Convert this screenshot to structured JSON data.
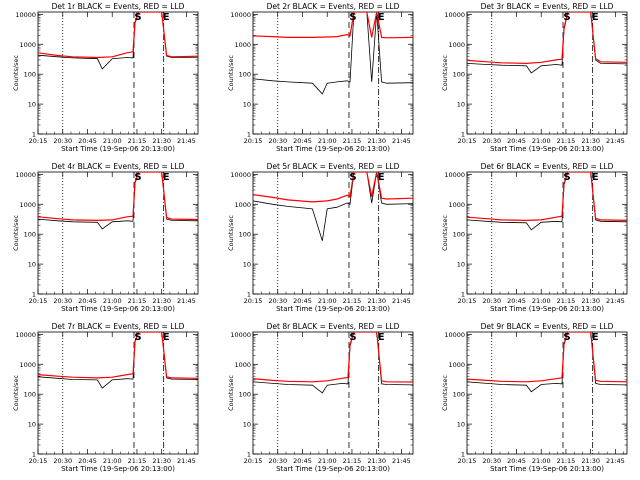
{
  "page": {
    "background": "#ffffff"
  },
  "common": {
    "ylabel": "Counts/sec",
    "xlabel": "Start Time (19-Sep-06 20:13:00)",
    "xticks": [
      "20:15",
      "20:30",
      "20:45",
      "21:00",
      "21:15",
      "21:30",
      "21:45"
    ],
    "yticks": [
      "1",
      "10",
      "100",
      "1000",
      "10000"
    ],
    "colors": {
      "events": "#000000",
      "lld": "#ff0000"
    },
    "scale": "log"
  },
  "chart_data": [
    {
      "type": "line",
      "title": "Det 1r BLACK = Events, RED = LLD",
      "xlim": [
        20.25,
        21.867
      ],
      "ylim": [
        1,
        12000
      ],
      "lines": {
        "dotted": 20.5,
        "dashed": 21.22,
        "dashdot": 21.52
      },
      "markers": [
        {
          "text": "S",
          "x": 21.26
        },
        {
          "text": "E",
          "x": 21.545
        }
      ],
      "series": [
        {
          "name": "Events",
          "color": "#000000",
          "x": [
            20.25,
            20.45,
            20.6,
            20.85,
            20.9,
            21.0,
            21.15,
            21.21,
            21.23,
            21.27,
            21.3,
            21.35,
            21.4,
            21.45,
            21.5,
            21.55,
            21.6,
            21.867
          ],
          "y": [
            430,
            380,
            350,
            330,
            150,
            330,
            360,
            350,
            5000,
            12000,
            12000,
            12000,
            12000,
            12000,
            12000,
            400,
            360,
            370
          ]
        },
        {
          "name": "LLD",
          "color": "#ff0000",
          "x": [
            20.25,
            20.45,
            20.6,
            20.85,
            21.0,
            21.15,
            21.21,
            21.23,
            21.27,
            21.3,
            21.35,
            21.4,
            21.45,
            21.5,
            21.55,
            21.6,
            21.867
          ],
          "y": [
            520,
            420,
            380,
            360,
            380,
            520,
            560,
            5500,
            12000,
            12000,
            12000,
            12000,
            12000,
            12000,
            420,
            380,
            400
          ]
        }
      ]
    },
    {
      "type": "line",
      "title": "Det 2r BLACK = Events, RED = LLD",
      "xlim": [
        20.25,
        21.867
      ],
      "ylim": [
        1,
        12000
      ],
      "lines": {
        "dotted": 20.5,
        "dashed": 21.22,
        "dashdot": 21.52
      },
      "markers": [
        {
          "text": "S",
          "x": 21.26
        },
        {
          "text": "E",
          "x": 21.545
        }
      ],
      "series": [
        {
          "name": "Events",
          "color": "#000000",
          "x": [
            20.25,
            20.45,
            20.6,
            20.85,
            20.95,
            21.0,
            21.1,
            21.2,
            21.23,
            21.27,
            21.35,
            21.4,
            21.45,
            21.5,
            21.55,
            21.6,
            21.867
          ],
          "y": [
            70,
            60,
            55,
            50,
            22,
            50,
            55,
            60,
            55,
            12000,
            12000,
            12000,
            55,
            12000,
            55,
            50,
            52
          ]
        },
        {
          "name": "LLD",
          "color": "#ff0000",
          "x": [
            20.25,
            20.45,
            20.6,
            20.85,
            21.0,
            21.1,
            21.2,
            21.23,
            21.27,
            21.35,
            21.4,
            21.45,
            21.5,
            21.55,
            21.6,
            21.867
          ],
          "y": [
            1900,
            1800,
            1700,
            1700,
            1750,
            1800,
            2100,
            1900,
            12000,
            12000,
            12000,
            1700,
            12000,
            1700,
            1650,
            1700
          ]
        }
      ]
    },
    {
      "type": "line",
      "title": "Det 3r BLACK = Events, RED = LLD",
      "xlim": [
        20.25,
        21.867
      ],
      "ylim": [
        1,
        12000
      ],
      "lines": {
        "dotted": 20.5,
        "dashed": 21.22,
        "dashdot": 21.52
      },
      "markers": [
        {
          "text": "S",
          "x": 21.26
        },
        {
          "text": "E",
          "x": 21.545
        }
      ],
      "series": [
        {
          "name": "Events",
          "color": "#000000",
          "x": [
            20.25,
            20.45,
            20.6,
            20.85,
            20.9,
            21.0,
            21.15,
            21.21,
            21.23,
            21.27,
            21.35,
            21.45,
            21.5,
            21.55,
            21.6,
            21.867
          ],
          "y": [
            230,
            210,
            200,
            190,
            110,
            190,
            210,
            200,
            3000,
            12000,
            12000,
            12000,
            12000,
            300,
            230,
            220
          ]
        },
        {
          "name": "LLD",
          "color": "#ff0000",
          "x": [
            20.25,
            20.45,
            20.6,
            20.85,
            21.0,
            21.15,
            21.21,
            21.23,
            21.27,
            21.35,
            21.45,
            21.5,
            21.55,
            21.6,
            21.867
          ],
          "y": [
            290,
            260,
            240,
            230,
            250,
            300,
            320,
            3500,
            12000,
            12000,
            12000,
            12000,
            330,
            260,
            250
          ]
        }
      ]
    },
    {
      "type": "line",
      "title": "Det 4r BLACK = Events, RED = LLD",
      "xlim": [
        20.25,
        21.867
      ],
      "ylim": [
        1,
        12000
      ],
      "lines": {
        "dotted": 20.5,
        "dashed": 21.22,
        "dashdot": 21.52
      },
      "markers": [
        {
          "text": "S",
          "x": 21.26
        },
        {
          "text": "E",
          "x": 21.545
        }
      ],
      "series": [
        {
          "name": "Events",
          "color": "#000000",
          "x": [
            20.25,
            20.45,
            20.6,
            20.85,
            20.9,
            21.0,
            21.15,
            21.21,
            21.23,
            21.27,
            21.35,
            21.45,
            21.5,
            21.55,
            21.6,
            21.867
          ],
          "y": [
            320,
            280,
            260,
            250,
            150,
            260,
            280,
            270,
            5000,
            12000,
            12000,
            12000,
            12000,
            320,
            290,
            280
          ]
        },
        {
          "name": "LLD",
          "color": "#ff0000",
          "x": [
            20.25,
            20.45,
            20.6,
            20.85,
            21.0,
            21.15,
            21.21,
            21.23,
            21.27,
            21.35,
            21.45,
            21.5,
            21.55,
            21.6,
            21.867
          ],
          "y": [
            380,
            330,
            300,
            290,
            300,
            380,
            400,
            5500,
            12000,
            12000,
            12000,
            12000,
            360,
            320,
            310
          ]
        }
      ]
    },
    {
      "type": "line",
      "title": "Det 5r BLACK = Events, RED = LLD",
      "xlim": [
        20.25,
        21.867
      ],
      "ylim": [
        1,
        12000
      ],
      "lines": {
        "dotted": 20.5,
        "dashed": 21.22,
        "dashdot": 21.52
      },
      "markers": [
        {
          "text": "S",
          "x": 21.26
        },
        {
          "text": "E",
          "x": 21.545
        }
      ],
      "series": [
        {
          "name": "Events",
          "color": "#000000",
          "x": [
            20.25,
            20.45,
            20.6,
            20.85,
            20.95,
            21.0,
            21.1,
            21.2,
            21.23,
            21.27,
            21.35,
            21.4,
            21.45,
            21.5,
            21.55,
            21.6,
            21.867
          ],
          "y": [
            1300,
            1000,
            850,
            700,
            60,
            700,
            800,
            1100,
            1000,
            12000,
            12000,
            12000,
            1100,
            12000,
            1100,
            1000,
            1050
          ]
        },
        {
          "name": "LLD",
          "color": "#ff0000",
          "x": [
            20.25,
            20.45,
            20.6,
            20.85,
            21.0,
            21.1,
            21.2,
            21.23,
            21.27,
            21.35,
            21.4,
            21.45,
            21.5,
            21.55,
            21.6,
            21.867
          ],
          "y": [
            2100,
            1700,
            1400,
            1200,
            1300,
            1500,
            2000,
            1800,
            12000,
            12000,
            12000,
            1800,
            12000,
            1600,
            1500,
            1600
          ]
        }
      ]
    },
    {
      "type": "line",
      "title": "Det 6r BLACK = Events, RED = LLD",
      "xlim": [
        20.25,
        21.867
      ],
      "ylim": [
        1,
        12000
      ],
      "lines": {
        "dotted": 20.5,
        "dashed": 21.22,
        "dashdot": 21.52
      },
      "markers": [
        {
          "text": "S",
          "x": 21.26
        },
        {
          "text": "E",
          "x": 21.545
        }
      ],
      "series": [
        {
          "name": "Events",
          "color": "#000000",
          "x": [
            20.25,
            20.45,
            20.6,
            20.85,
            20.9,
            21.0,
            21.15,
            21.21,
            21.23,
            21.27,
            21.35,
            21.45,
            21.5,
            21.55,
            21.6,
            21.867
          ],
          "y": [
            300,
            270,
            250,
            240,
            140,
            250,
            270,
            260,
            4500,
            12000,
            12000,
            12000,
            12000,
            300,
            270,
            260
          ]
        },
        {
          "name": "LLD",
          "color": "#ff0000",
          "x": [
            20.25,
            20.45,
            20.6,
            20.85,
            21.0,
            21.15,
            21.21,
            21.23,
            21.27,
            21.35,
            21.45,
            21.5,
            21.55,
            21.6,
            21.867
          ],
          "y": [
            370,
            330,
            300,
            290,
            300,
            370,
            400,
            5000,
            12000,
            12000,
            12000,
            12000,
            340,
            300,
            290
          ]
        }
      ]
    },
    {
      "type": "line",
      "title": "Det 7r BLACK = Events, RED = LLD",
      "xlim": [
        20.25,
        21.867
      ],
      "ylim": [
        1,
        12000
      ],
      "lines": {
        "dotted": 20.5,
        "dashed": 21.22,
        "dashdot": 21.52
      },
      "markers": [
        {
          "text": "S",
          "x": 21.26
        },
        {
          "text": "E",
          "x": 21.545
        }
      ],
      "series": [
        {
          "name": "Events",
          "color": "#000000",
          "x": [
            20.25,
            20.45,
            20.6,
            20.85,
            20.9,
            21.0,
            21.15,
            21.21,
            21.23,
            21.27,
            21.35,
            21.45,
            21.5,
            21.55,
            21.6,
            21.867
          ],
          "y": [
            380,
            340,
            310,
            300,
            160,
            300,
            330,
            320,
            5500,
            12000,
            12000,
            12000,
            12000,
            350,
            320,
            310
          ]
        },
        {
          "name": "LLD",
          "color": "#ff0000",
          "x": [
            20.25,
            20.45,
            20.6,
            20.85,
            21.0,
            21.15,
            21.21,
            21.23,
            21.27,
            21.35,
            21.45,
            21.5,
            21.55,
            21.6,
            21.867
          ],
          "y": [
            450,
            400,
            370,
            350,
            370,
            450,
            480,
            6000,
            12000,
            12000,
            12000,
            12000,
            380,
            350,
            340
          ]
        }
      ]
    },
    {
      "type": "line",
      "title": "Det 8r BLACK = Events, RED = LLD",
      "xlim": [
        20.25,
        21.867
      ],
      "ylim": [
        1,
        12000
      ],
      "lines": {
        "dotted": 20.5,
        "dashed": 21.22,
        "dashdot": 21.52
      },
      "markers": [
        {
          "text": "S",
          "x": 21.26
        },
        {
          "text": "E",
          "x": 21.545
        }
      ],
      "series": [
        {
          "name": "Events",
          "color": "#000000",
          "x": [
            20.25,
            20.45,
            20.6,
            20.85,
            20.95,
            21.0,
            21.15,
            21.21,
            21.23,
            21.27,
            21.35,
            21.45,
            21.5,
            21.55,
            21.6,
            21.867
          ],
          "y": [
            260,
            230,
            210,
            200,
            110,
            200,
            230,
            220,
            4000,
            12000,
            12000,
            12000,
            12000,
            220,
            210,
            205
          ]
        },
        {
          "name": "LLD",
          "color": "#ff0000",
          "x": [
            20.25,
            20.45,
            20.6,
            20.85,
            21.0,
            21.15,
            21.21,
            21.23,
            21.27,
            21.35,
            21.45,
            21.5,
            21.55,
            21.6,
            21.867
          ],
          "y": [
            330,
            290,
            270,
            260,
            280,
            340,
            360,
            4500,
            12000,
            12000,
            12000,
            12000,
            280,
            260,
            255
          ]
        }
      ]
    },
    {
      "type": "line",
      "title": "Det 9r BLACK = Events, RED = LLD",
      "xlim": [
        20.25,
        21.867
      ],
      "ylim": [
        1,
        12000
      ],
      "lines": {
        "dotted": 20.5,
        "dashed": 21.22,
        "dashdot": 21.52
      },
      "markers": [
        {
          "text": "S",
          "x": 21.26
        },
        {
          "text": "E",
          "x": 21.545
        }
      ],
      "series": [
        {
          "name": "Events",
          "color": "#000000",
          "x": [
            20.25,
            20.45,
            20.6,
            20.85,
            20.9,
            21.0,
            21.15,
            21.21,
            21.23,
            21.27,
            21.35,
            21.45,
            21.5,
            21.55,
            21.6,
            21.867
          ],
          "y": [
            260,
            230,
            210,
            200,
            120,
            210,
            230,
            220,
            4500,
            12000,
            12000,
            12000,
            12000,
            230,
            210,
            205
          ]
        },
        {
          "name": "LLD",
          "color": "#ff0000",
          "x": [
            20.25,
            20.45,
            20.6,
            20.85,
            21.0,
            21.15,
            21.21,
            21.23,
            21.27,
            21.35,
            21.45,
            21.5,
            21.55,
            21.6,
            21.867
          ],
          "y": [
            320,
            290,
            270,
            260,
            280,
            330,
            350,
            5000,
            12000,
            12000,
            12000,
            12000,
            290,
            270,
            260
          ]
        }
      ]
    }
  ]
}
